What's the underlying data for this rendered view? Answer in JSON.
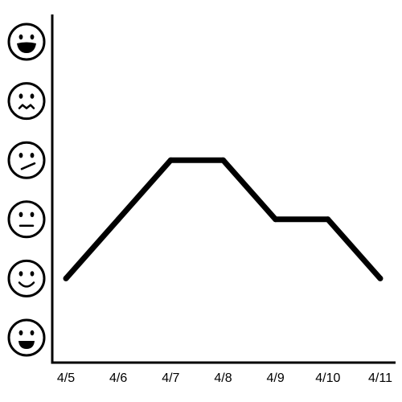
{
  "chart_data": {
    "type": "line",
    "title": "",
    "xlabel": "",
    "ylabel": "",
    "x": [
      "4/5",
      "4/6",
      "4/7",
      "4/8",
      "4/9",
      "4/10",
      "4/11"
    ],
    "y_categories": [
      "laughing-face-icon",
      "worried-face-icon",
      "skeptical-face-icon",
      "neutral-face-icon",
      "smiling-face-icon",
      "grinning-face-icon"
    ],
    "series": [
      {
        "values": [
          "smiling-face-icon",
          "neutral-face-icon",
          "skeptical-face-icon",
          "skeptical-face-icon",
          "neutral-face-icon",
          "neutral-face-icon",
          "smiling-face-icon"
        ],
        "color": "#000000"
      }
    ],
    "grid": false,
    "legend": "none"
  }
}
